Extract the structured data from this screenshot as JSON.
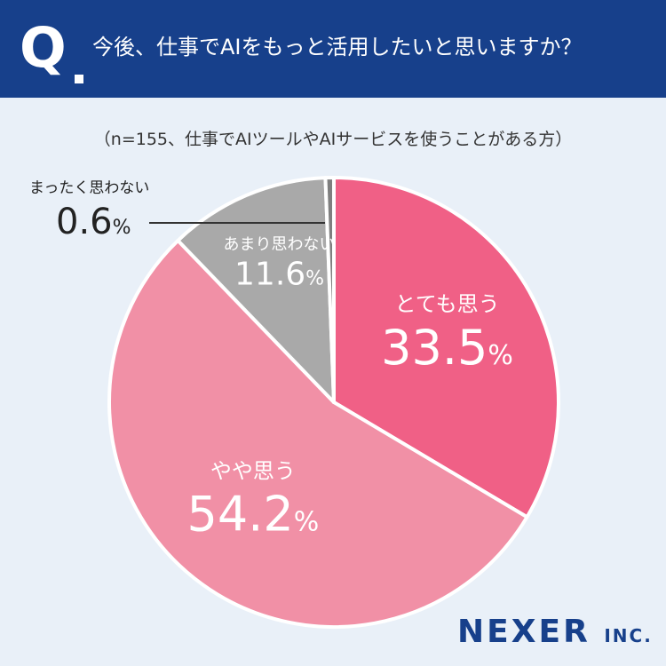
{
  "header": {
    "q_mark": "Q",
    "question": "今後、仕事でAIをもっと活用したいと思いますか？"
  },
  "note": "（n=155、仕事でAIツールやAIサービスを使うことがある方）",
  "colors": {
    "header_bg": "#17408b",
    "page_bg": "#e9f0f8",
    "strongly_agree": "#f06086",
    "somewhat_agree": "#f190a6",
    "somewhat_disagree": "#a9a9a9",
    "strongly_disagree": "#7f7f7f"
  },
  "chart_data": {
    "type": "pie",
    "categories": [
      "とても思う",
      "やや思う",
      "あまり思わない",
      "まったく思わない"
    ],
    "values": [
      33.5,
      54.2,
      11.6,
      0.6
    ],
    "unit": "%",
    "start": "12 o'clock, clockwise"
  },
  "labels": {
    "percent_sign": "%",
    "callout_name": "まったく思わない",
    "callout_value": "0.6"
  },
  "logo": {
    "name": "NEXER",
    "suffix": "INC."
  }
}
